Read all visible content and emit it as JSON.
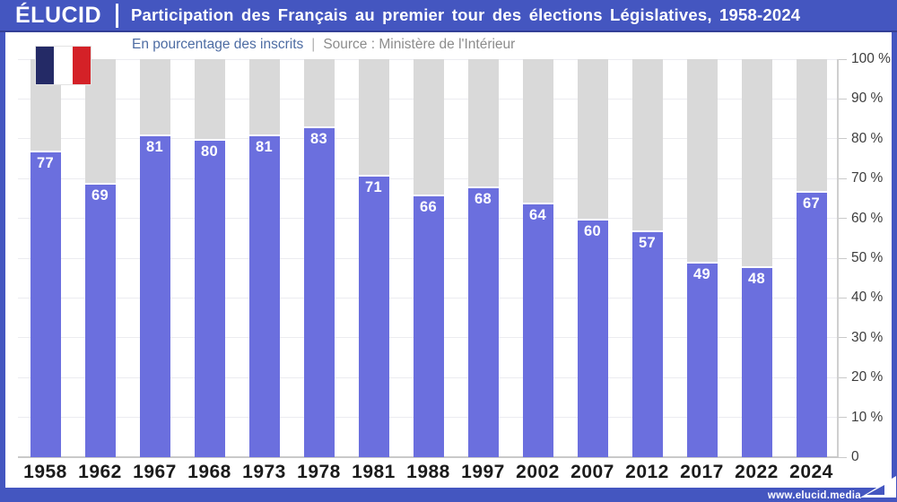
{
  "header": {
    "logo": "ÉLUCID",
    "title": "Participation des Français au premier tour des élections Législatives, 1958-2024"
  },
  "subtitle": {
    "label": "En pourcentage des inscrits",
    "separator": "|",
    "source": "Source : Ministère de l'Intérieur"
  },
  "footer": {
    "url": "www.elucid.media"
  },
  "icons": {
    "flag": "french-flag",
    "footer_logo": "elucid-arrow"
  },
  "colors": {
    "band_blue": "#4456c0",
    "bar_blue": "#6b6fde",
    "bar_background_gray": "#d9d9d9",
    "flag_navy": "#242a66",
    "flag_red": "#d42127"
  },
  "chart_data": {
    "type": "bar",
    "title": "Participation des Français au premier tour des élections Législatives, 1958-2024",
    "subtitle": "En pourcentage des inscrits",
    "source": "Ministère de l'Intérieur",
    "categories": [
      "1958",
      "1962",
      "1967",
      "1968",
      "1973",
      "1978",
      "1981",
      "1988",
      "1997",
      "2002",
      "2007",
      "2012",
      "2017",
      "2022",
      "2024"
    ],
    "values": [
      77,
      69,
      81,
      80,
      81,
      83,
      71,
      66,
      68,
      64,
      60,
      57,
      49,
      48,
      67
    ],
    "unit": "% des inscrits",
    "ylim": [
      0,
      100
    ],
    "ytick_values": [
      100,
      90,
      80,
      70,
      60,
      50,
      40,
      30,
      20,
      10,
      0
    ],
    "ytick_labels": [
      "100 %",
      "90 %",
      "80 %",
      "70 %",
      "60 %",
      "50 %",
      "40 %",
      "30 %",
      "20 %",
      "10 %",
      "0"
    ],
    "grid": true,
    "legend": false,
    "value_labels": true,
    "axis_side": "right"
  }
}
